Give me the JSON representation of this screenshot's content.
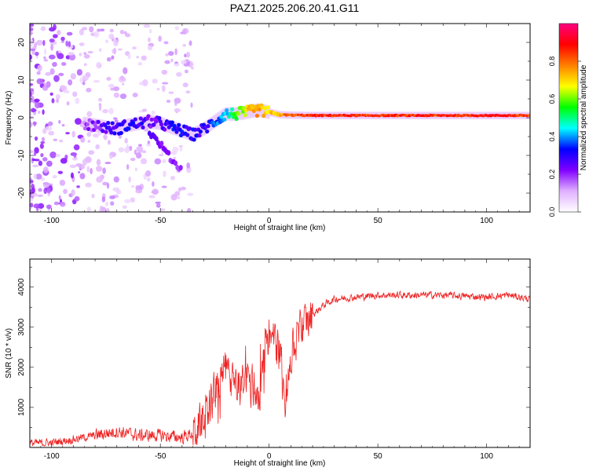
{
  "title": "PAZ1.2025.206.20.41.G11",
  "chart_data": [
    {
      "type": "heatmap",
      "xlabel": "Height of straight line (km)",
      "ylabel": "Frequency (Hz)",
      "xlim": [
        -110,
        120
      ],
      "ylim": [
        -25,
        25
      ],
      "x_ticks": [
        -100,
        -50,
        0,
        50,
        100
      ],
      "y_ticks": [
        -20,
        -10,
        0,
        10,
        20
      ],
      "colorbar": {
        "label": "Normalized spectral amplitude",
        "range": [
          0,
          1
        ],
        "ticks": [
          "0.0",
          "0.2",
          "0.4",
          "0.6",
          "0.8"
        ],
        "colors": [
          "#ffffff",
          "#e0b0ff",
          "#8000ff",
          "#0000ff",
          "#00ffff",
          "#00ff00",
          "#ffff00",
          "#ff8000",
          "#ff0000",
          "#ff0080"
        ]
      },
      "ridge": {
        "x": [
          -90,
          -80,
          -75,
          -70,
          -65,
          -60,
          -55,
          -50,
          -45,
          -40,
          -35,
          -30,
          -25,
          -20,
          -15,
          -10,
          -5,
          0,
          5,
          10,
          20,
          40,
          60,
          80,
          100,
          120
        ],
        "freq": [
          -1,
          -2,
          -2.5,
          -3,
          -2,
          -1.5,
          -1,
          -1.5,
          -2.5,
          -3.5,
          -4.5,
          -3,
          -1,
          1,
          1,
          1.5,
          2,
          1.5,
          0.8,
          0.7,
          0.6,
          0.6,
          0.6,
          0.6,
          0.6,
          0.6
        ],
        "amplitude": [
          0.15,
          0.2,
          0.25,
          0.28,
          0.3,
          0.3,
          0.25,
          0.25,
          0.3,
          0.32,
          0.3,
          0.28,
          0.35,
          0.4,
          0.55,
          0.7,
          0.75,
          0.7,
          0.75,
          0.8,
          0.85,
          0.85,
          0.85,
          0.85,
          0.88,
          0.85
        ]
      },
      "branch": {
        "x": [
          -55,
          -50,
          -45,
          -40
        ],
        "freq": [
          -4,
          -7,
          -11,
          -14
        ],
        "amplitude": [
          0.25,
          0.22,
          0.2,
          0.18
        ]
      }
    },
    {
      "type": "line",
      "xlabel": "Height of straight line (km)",
      "ylabel": "SNR (10 * v/v)",
      "xlim": [
        -110,
        120
      ],
      "ylim": [
        0,
        4700
      ],
      "x_ticks": [
        -100,
        -50,
        0,
        50,
        100
      ],
      "y_ticks": [
        1000,
        2000,
        3000,
        4000
      ],
      "color": "#ee2222",
      "x": [
        -110,
        -100,
        -90,
        -80,
        -70,
        -60,
        -50,
        -40,
        -35,
        -30,
        -25,
        -20,
        -15,
        -10,
        -5,
        0,
        5,
        7,
        10,
        15,
        20,
        25,
        30,
        40,
        50,
        60,
        80,
        100,
        110,
        120
      ],
      "y": [
        100,
        120,
        200,
        300,
        400,
        300,
        300,
        250,
        350,
        700,
        1400,
        2000,
        1400,
        1800,
        1300,
        2800,
        2400,
        1000,
        2300,
        3000,
        3300,
        3550,
        3700,
        3750,
        3800,
        3800,
        3800,
        3750,
        3800,
        3700
      ]
    }
  ]
}
